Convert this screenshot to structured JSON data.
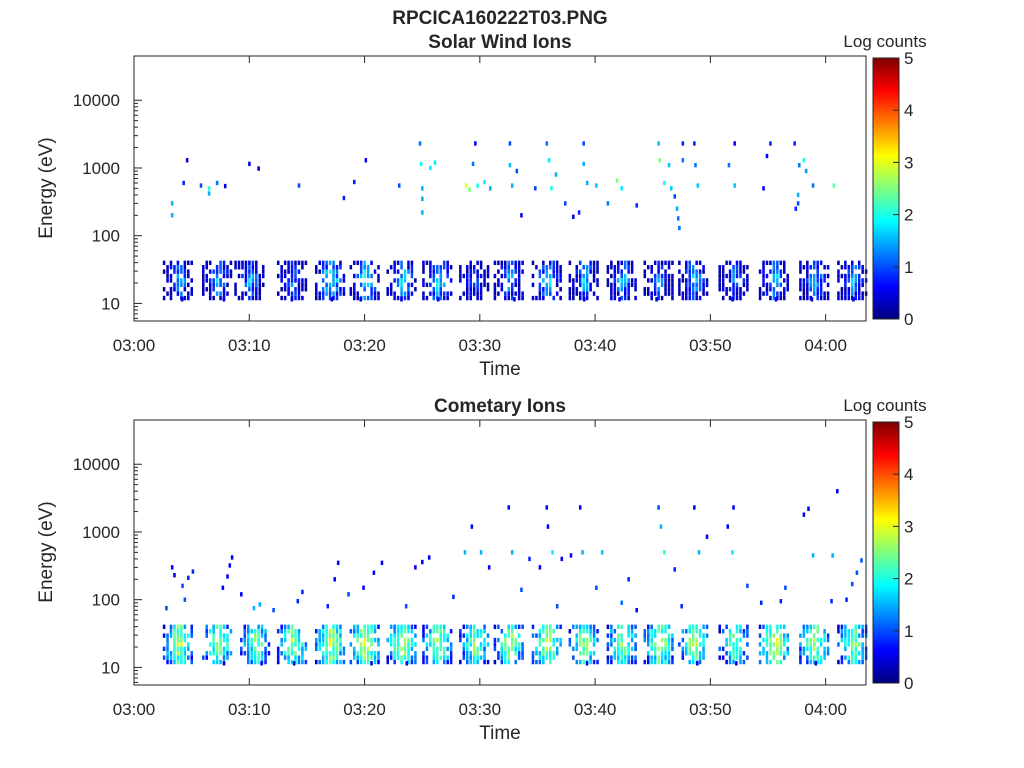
{
  "figure": {
    "filename_title": "RPCICA160222T03.PNG"
  },
  "colors": {
    "colormap": [
      "#00007f",
      "#0000ff",
      "#007fff",
      "#00ffff",
      "#7fff7f",
      "#ffff00",
      "#ff7f00",
      "#ff0000",
      "#7f0000"
    ],
    "axis": "#262626"
  },
  "chart_data": [
    {
      "type": "heatmap",
      "title": "Solar Wind Ions",
      "xlabel": "Time",
      "ylabel": "Energy (eV)",
      "y_scale": "log",
      "x_ticks": [
        "03:00",
        "03:10",
        "03:20",
        "03:30",
        "03:40",
        "03:50",
        "04:00"
      ],
      "x_tick_minutes": [
        0,
        10,
        20,
        30,
        40,
        50,
        60
      ],
      "xlim_minutes": [
        0,
        63.5
      ],
      "y_ticks": [
        10,
        100,
        1000,
        10000
      ],
      "y_tick_labels": [
        "10",
        "100",
        "1000",
        "10000"
      ],
      "ylim": [
        5.5,
        45000
      ],
      "colorbar": {
        "title": "Log counts",
        "ticks": [
          "0",
          "1",
          "2",
          "3",
          "4",
          "5"
        ],
        "range": [
          0,
          5
        ]
      },
      "low_band": {
        "e_min": 12,
        "e_max": 42,
        "center_minutes": [
          3.8,
          7.2,
          10.0,
          13.7,
          17.0,
          20.0,
          23.2,
          26.3,
          29.5,
          32.5,
          35.8,
          39.0,
          42.3,
          45.5,
          48.5,
          52.0,
          55.5,
          59.0,
          62.3
        ],
        "peak_log_counts": [
          1.6,
          1.6,
          1.5,
          1.4,
          2.0,
          2.0,
          1.8,
          1.9,
          1.3,
          1.6,
          1.8,
          1.7,
          1.6,
          1.4,
          1.7,
          1.4,
          1.8,
          1.6,
          1.7
        ]
      },
      "upper_points": [
        {
          "t": 3.2,
          "e": 300,
          "c": 1.5
        },
        {
          "t": 3.2,
          "e": 200,
          "c": 1.5
        },
        {
          "t": 4.2,
          "e": 600,
          "c": 0.8
        },
        {
          "t": 4.5,
          "e": 1300,
          "c": 0.4
        },
        {
          "t": 5.7,
          "e": 550,
          "c": 1.0
        },
        {
          "t": 6.4,
          "e": 500,
          "c": 2.0
        },
        {
          "t": 6.4,
          "e": 420,
          "c": 1.5
        },
        {
          "t": 7.1,
          "e": 600,
          "c": 1.2
        },
        {
          "t": 7.8,
          "e": 540,
          "c": 0.6
        },
        {
          "t": 9.9,
          "e": 1150,
          "c": 0.4
        },
        {
          "t": 10.7,
          "e": 980,
          "c": 0.4
        },
        {
          "t": 14.2,
          "e": 550,
          "c": 1.0
        },
        {
          "t": 18.1,
          "e": 360,
          "c": 0.8
        },
        {
          "t": 19.0,
          "e": 620,
          "c": 0.8
        },
        {
          "t": 20.0,
          "e": 1300,
          "c": 0.5
        },
        {
          "t": 22.9,
          "e": 550,
          "c": 1.0
        },
        {
          "t": 24.7,
          "e": 2300,
          "c": 1.2
        },
        {
          "t": 24.8,
          "e": 1150,
          "c": 1.9
        },
        {
          "t": 24.9,
          "e": 500,
          "c": 1.5
        },
        {
          "t": 24.9,
          "e": 350,
          "c": 1.5
        },
        {
          "t": 24.9,
          "e": 220,
          "c": 1.5
        },
        {
          "t": 25.6,
          "e": 1000,
          "c": 1.8
        },
        {
          "t": 26.0,
          "e": 1200,
          "c": 1.8
        },
        {
          "t": 28.7,
          "e": 550,
          "c": 3.0
        },
        {
          "t": 29.0,
          "e": 480,
          "c": 2.5
        },
        {
          "t": 29.7,
          "e": 550,
          "c": 2.0
        },
        {
          "t": 30.3,
          "e": 620,
          "c": 1.8
        },
        {
          "t": 30.8,
          "e": 500,
          "c": 1.5
        },
        {
          "t": 29.3,
          "e": 1150,
          "c": 1.2
        },
        {
          "t": 29.5,
          "e": 2300,
          "c": 0.6
        },
        {
          "t": 32.5,
          "e": 2300,
          "c": 1.0
        },
        {
          "t": 32.5,
          "e": 1100,
          "c": 1.6
        },
        {
          "t": 32.7,
          "e": 550,
          "c": 1.5
        },
        {
          "t": 33.1,
          "e": 900,
          "c": 1.0
        },
        {
          "t": 33.5,
          "e": 200,
          "c": 0.5
        },
        {
          "t": 34.7,
          "e": 500,
          "c": 1.0
        },
        {
          "t": 35.7,
          "e": 2300,
          "c": 1.2
        },
        {
          "t": 35.9,
          "e": 1300,
          "c": 1.8
        },
        {
          "t": 36.1,
          "e": 500,
          "c": 2.0
        },
        {
          "t": 36.5,
          "e": 800,
          "c": 1.5
        },
        {
          "t": 37.3,
          "e": 300,
          "c": 1.0
        },
        {
          "t": 38.0,
          "e": 190,
          "c": 0.5
        },
        {
          "t": 38.5,
          "e": 220,
          "c": 0.8
        },
        {
          "t": 38.9,
          "e": 2300,
          "c": 1.0
        },
        {
          "t": 38.9,
          "e": 1150,
          "c": 1.5
        },
        {
          "t": 39.2,
          "e": 600,
          "c": 1.5
        },
        {
          "t": 40.0,
          "e": 550,
          "c": 1.6
        },
        {
          "t": 41.0,
          "e": 300,
          "c": 1.2
        },
        {
          "t": 41.8,
          "e": 650,
          "c": 2.5
        },
        {
          "t": 42.2,
          "e": 500,
          "c": 1.8
        },
        {
          "t": 43.5,
          "e": 280,
          "c": 0.8
        },
        {
          "t": 45.4,
          "e": 2300,
          "c": 1.6
        },
        {
          "t": 45.5,
          "e": 1300,
          "c": 2.5
        },
        {
          "t": 45.9,
          "e": 600,
          "c": 2.0
        },
        {
          "t": 46.5,
          "e": 500,
          "c": 1.6
        },
        {
          "t": 46.8,
          "e": 380,
          "c": 1.0
        },
        {
          "t": 46.3,
          "e": 1100,
          "c": 1.6
        },
        {
          "t": 47.0,
          "e": 250,
          "c": 1.5
        },
        {
          "t": 47.1,
          "e": 180,
          "c": 1.2
        },
        {
          "t": 47.2,
          "e": 130,
          "c": 1.2
        },
        {
          "t": 47.5,
          "e": 2300,
          "c": 0.8
        },
        {
          "t": 47.5,
          "e": 1300,
          "c": 1.2
        },
        {
          "t": 48.5,
          "e": 2300,
          "c": 0.8
        },
        {
          "t": 48.6,
          "e": 1100,
          "c": 1.2
        },
        {
          "t": 48.8,
          "e": 550,
          "c": 1.6
        },
        {
          "t": 51.5,
          "e": 1100,
          "c": 1.2
        },
        {
          "t": 52.0,
          "e": 550,
          "c": 1.6
        },
        {
          "t": 52.0,
          "e": 2300,
          "c": 0.6
        },
        {
          "t": 54.5,
          "e": 500,
          "c": 0.6
        },
        {
          "t": 54.8,
          "e": 1500,
          "c": 0.6
        },
        {
          "t": 55.1,
          "e": 2300,
          "c": 0.8
        },
        {
          "t": 57.2,
          "e": 2300,
          "c": 0.8
        },
        {
          "t": 57.6,
          "e": 1100,
          "c": 1.2
        },
        {
          "t": 58.0,
          "e": 1300,
          "c": 2.0
        },
        {
          "t": 58.2,
          "e": 900,
          "c": 1.4
        },
        {
          "t": 57.5,
          "e": 400,
          "c": 1.5
        },
        {
          "t": 57.5,
          "e": 300,
          "c": 1.0
        },
        {
          "t": 57.3,
          "e": 250,
          "c": 0.8
        },
        {
          "t": 58.8,
          "e": 550,
          "c": 1.2
        },
        {
          "t": 60.6,
          "e": 550,
          "c": 2.3
        }
      ]
    },
    {
      "type": "heatmap",
      "title": "Cometary Ions",
      "xlabel": "Time",
      "ylabel": "Energy (eV)",
      "y_scale": "log",
      "x_ticks": [
        "03:00",
        "03:10",
        "03:20",
        "03:30",
        "03:40",
        "03:50",
        "04:00"
      ],
      "x_tick_minutes": [
        0,
        10,
        20,
        30,
        40,
        50,
        60
      ],
      "xlim_minutes": [
        0,
        63.5
      ],
      "y_ticks": [
        10,
        100,
        1000,
        10000
      ],
      "y_tick_labels": [
        "10",
        "100",
        "1000",
        "10000"
      ],
      "ylim": [
        5.5,
        45000
      ],
      "colorbar": {
        "title": "Log counts",
        "ticks": [
          "0",
          "1",
          "2",
          "3",
          "4",
          "5"
        ],
        "range": [
          0,
          5
        ]
      },
      "low_band": {
        "e_min": 12,
        "e_max": 45,
        "center_minutes": [
          3.8,
          7.2,
          10.5,
          13.7,
          17.0,
          20.0,
          23.2,
          26.3,
          29.5,
          32.5,
          35.8,
          39.0,
          42.3,
          45.5,
          48.5,
          52.0,
          55.5,
          59.0,
          62.3
        ],
        "peak_log_counts": [
          2.9,
          2.8,
          2.6,
          2.8,
          3.0,
          3.0,
          2.9,
          2.8,
          2.7,
          2.8,
          2.9,
          2.8,
          2.8,
          2.9,
          2.8,
          2.6,
          3.1,
          2.8,
          2.7
        ]
      },
      "upper_points": [
        {
          "t": 2.7,
          "e": 75,
          "c": 1.0
        },
        {
          "t": 3.2,
          "e": 300,
          "c": 0.6
        },
        {
          "t": 3.4,
          "e": 230,
          "c": 0.6
        },
        {
          "t": 4.1,
          "e": 160,
          "c": 1.0
        },
        {
          "t": 4.3,
          "e": 100,
          "c": 1.0
        },
        {
          "t": 4.6,
          "e": 210,
          "c": 0.8
        },
        {
          "t": 5.0,
          "e": 260,
          "c": 0.8
        },
        {
          "t": 7.6,
          "e": 150,
          "c": 0.6
        },
        {
          "t": 8.0,
          "e": 220,
          "c": 0.6
        },
        {
          "t": 8.2,
          "e": 320,
          "c": 0.6
        },
        {
          "t": 8.4,
          "e": 420,
          "c": 0.6
        },
        {
          "t": 9.2,
          "e": 120,
          "c": 0.6
        },
        {
          "t": 10.3,
          "e": 75,
          "c": 1.5
        },
        {
          "t": 10.8,
          "e": 85,
          "c": 1.5
        },
        {
          "t": 12.0,
          "e": 70,
          "c": 1.0
        },
        {
          "t": 14.1,
          "e": 95,
          "c": 0.8
        },
        {
          "t": 14.5,
          "e": 130,
          "c": 0.8
        },
        {
          "t": 16.7,
          "e": 80,
          "c": 0.8
        },
        {
          "t": 17.3,
          "e": 200,
          "c": 0.6
        },
        {
          "t": 17.6,
          "e": 350,
          "c": 0.6
        },
        {
          "t": 18.5,
          "e": 120,
          "c": 1.0
        },
        {
          "t": 19.8,
          "e": 150,
          "c": 0.6
        },
        {
          "t": 20.7,
          "e": 250,
          "c": 0.6
        },
        {
          "t": 21.4,
          "e": 350,
          "c": 0.6
        },
        {
          "t": 23.5,
          "e": 80,
          "c": 1.0
        },
        {
          "t": 24.3,
          "e": 300,
          "c": 0.6
        },
        {
          "t": 24.9,
          "e": 360,
          "c": 0.6
        },
        {
          "t": 25.5,
          "e": 420,
          "c": 0.6
        },
        {
          "t": 27.6,
          "e": 110,
          "c": 0.8
        },
        {
          "t": 28.6,
          "e": 500,
          "c": 1.5
        },
        {
          "t": 29.2,
          "e": 1200,
          "c": 0.6
        },
        {
          "t": 30.0,
          "e": 500,
          "c": 1.5
        },
        {
          "t": 30.7,
          "e": 300,
          "c": 0.6
        },
        {
          "t": 32.4,
          "e": 2300,
          "c": 0.6
        },
        {
          "t": 32.7,
          "e": 500,
          "c": 1.5
        },
        {
          "t": 33.5,
          "e": 140,
          "c": 1.0
        },
        {
          "t": 34.2,
          "e": 400,
          "c": 0.8
        },
        {
          "t": 35.1,
          "e": 300,
          "c": 0.6
        },
        {
          "t": 35.7,
          "e": 2300,
          "c": 0.6
        },
        {
          "t": 35.8,
          "e": 1200,
          "c": 0.6
        },
        {
          "t": 36.2,
          "e": 500,
          "c": 1.8
        },
        {
          "t": 36.6,
          "e": 80,
          "c": 1.0
        },
        {
          "t": 37.0,
          "e": 400,
          "c": 0.6
        },
        {
          "t": 37.8,
          "e": 450,
          "c": 0.6
        },
        {
          "t": 38.6,
          "e": 2300,
          "c": 0.6
        },
        {
          "t": 38.8,
          "e": 500,
          "c": 1.5
        },
        {
          "t": 40.0,
          "e": 150,
          "c": 1.0
        },
        {
          "t": 40.5,
          "e": 500,
          "c": 1.6
        },
        {
          "t": 42.2,
          "e": 90,
          "c": 1.2
        },
        {
          "t": 42.8,
          "e": 200,
          "c": 0.8
        },
        {
          "t": 43.5,
          "e": 70,
          "c": 0.6
        },
        {
          "t": 45.4,
          "e": 2300,
          "c": 1.0
        },
        {
          "t": 45.6,
          "e": 1200,
          "c": 1.5
        },
        {
          "t": 45.9,
          "e": 500,
          "c": 2.0
        },
        {
          "t": 46.8,
          "e": 280,
          "c": 0.8
        },
        {
          "t": 47.4,
          "e": 80,
          "c": 0.8
        },
        {
          "t": 48.5,
          "e": 2300,
          "c": 0.6
        },
        {
          "t": 48.9,
          "e": 500,
          "c": 1.5
        },
        {
          "t": 49.6,
          "e": 850,
          "c": 0.6
        },
        {
          "t": 51.4,
          "e": 1200,
          "c": 0.6
        },
        {
          "t": 51.8,
          "e": 500,
          "c": 1.8
        },
        {
          "t": 51.9,
          "e": 2300,
          "c": 0.6
        },
        {
          "t": 53.1,
          "e": 160,
          "c": 1.0
        },
        {
          "t": 54.3,
          "e": 90,
          "c": 0.8
        },
        {
          "t": 56.0,
          "e": 95,
          "c": 0.8
        },
        {
          "t": 56.4,
          "e": 150,
          "c": 1.0
        },
        {
          "t": 58.0,
          "e": 1800,
          "c": 0.6
        },
        {
          "t": 58.4,
          "e": 2200,
          "c": 0.6
        },
        {
          "t": 58.8,
          "e": 450,
          "c": 1.5
        },
        {
          "t": 60.5,
          "e": 450,
          "c": 1.5
        },
        {
          "t": 60.4,
          "e": 95,
          "c": 0.8
        },
        {
          "t": 60.9,
          "e": 4000,
          "c": 0.6
        },
        {
          "t": 61.7,
          "e": 100,
          "c": 0.8
        },
        {
          "t": 62.2,
          "e": 170,
          "c": 1.0
        },
        {
          "t": 62.6,
          "e": 250,
          "c": 1.0
        },
        {
          "t": 63.0,
          "e": 380,
          "c": 1.0
        }
      ]
    }
  ]
}
